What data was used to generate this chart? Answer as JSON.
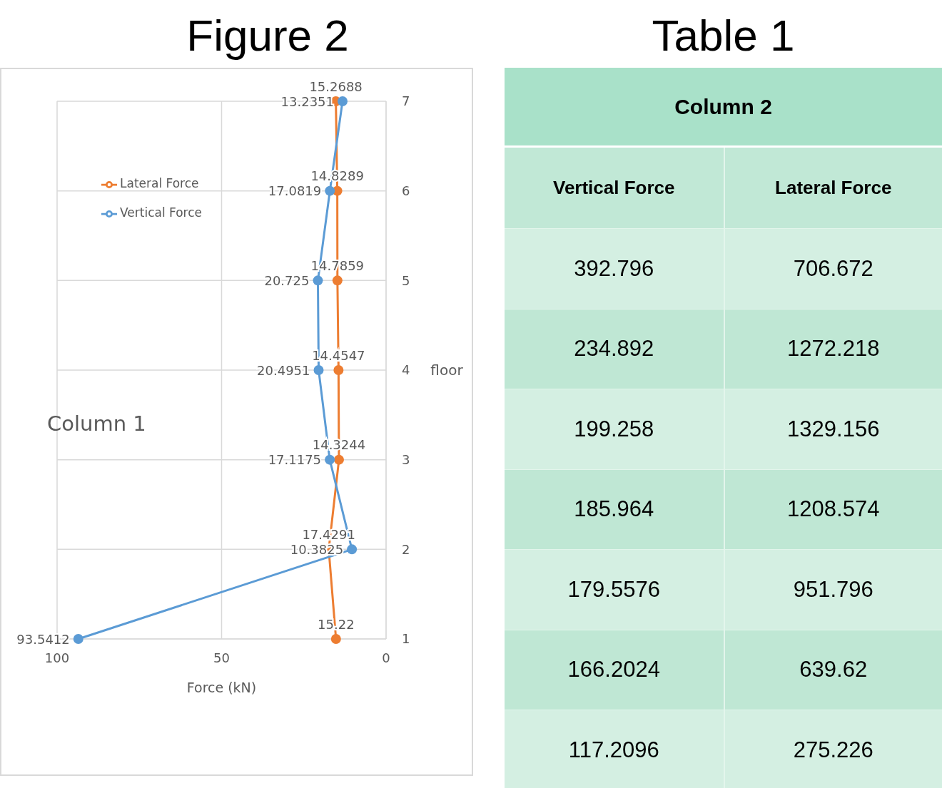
{
  "chart_data": [
    {
      "type": "line",
      "orientation": "horizontal",
      "title": "Figure 2",
      "xlabel": "Force (kN)",
      "ylabel": "floor",
      "categories": [
        "7",
        "6",
        "5",
        "4",
        "3",
        "2",
        "1"
      ],
      "xlim": [
        100,
        0
      ],
      "xticks": [
        100,
        50,
        0
      ],
      "grid": true,
      "legend": "top left",
      "marker": "circle",
      "data_labels": true,
      "annotations": [
        "Column 1"
      ],
      "series": [
        {
          "name": "Lateral Force",
          "color": "#ed7d31",
          "values": [
            15.2688,
            14.8289,
            14.7859,
            14.4547,
            14.3244,
            17.4291,
            15.22
          ]
        },
        {
          "name": "Vertical Force",
          "color": "#5b9bd5",
          "values": [
            13.2351,
            17.0819,
            20.725,
            20.4951,
            17.1175,
            10.3825,
            93.5412
          ]
        }
      ]
    },
    {
      "type": "other",
      "title": "Table 1",
      "subtitle": "Column 2",
      "categories": [
        "Vertical Force",
        "Lateral Force"
      ],
      "annotations": [
        "392.796",
        "706.672",
        "234.892",
        "1272.218",
        "199.258",
        "1329.156",
        "185.964",
        "1208.574",
        "179.5576",
        "951.796",
        "166.2024",
        "639.62",
        "117.2096",
        "275.226"
      ]
    }
  ]
}
